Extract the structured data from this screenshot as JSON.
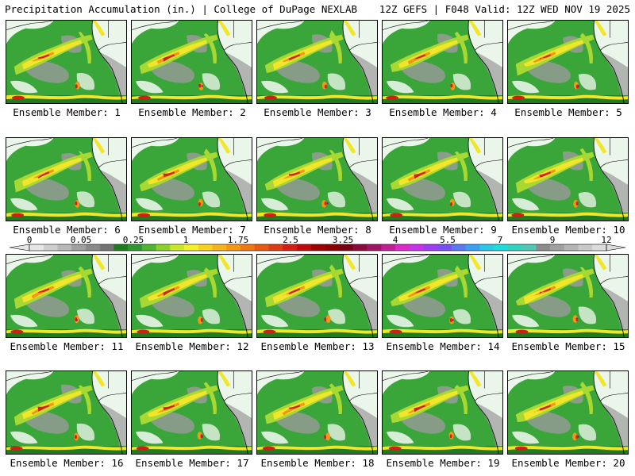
{
  "header": {
    "left_title": "Precipitation Accumulation (in.) | College of DuPage NEXLAB",
    "right_title": "12Z GEFS | F048 Valid: 12Z WED NOV 19 2025"
  },
  "panels": [
    {
      "label": "Ensemble Member: 1"
    },
    {
      "label": "Ensemble Member: 2"
    },
    {
      "label": "Ensemble Member: 3"
    },
    {
      "label": "Ensemble Member: 4"
    },
    {
      "label": "Ensemble Member: 5"
    },
    {
      "label": "Ensemble Member: 6"
    },
    {
      "label": "Ensemble Member: 7"
    },
    {
      "label": "Ensemble Member: 8"
    },
    {
      "label": "Ensemble Member: 9"
    },
    {
      "label": "Ensemble Member: 10"
    },
    {
      "label": "Ensemble Member: 11"
    },
    {
      "label": "Ensemble Member: 12"
    },
    {
      "label": "Ensemble Member: 13"
    },
    {
      "label": "Ensemble Member: 14"
    },
    {
      "label": "Ensemble Member: 15"
    },
    {
      "label": "Ensemble Member: 16"
    },
    {
      "label": "Ensemble Member: 17"
    },
    {
      "label": "Ensemble Member: 18"
    },
    {
      "label": "Ensemble Member: 19"
    },
    {
      "label": "Ensemble Member: 20"
    }
  ],
  "colorbar": {
    "tick_labels": [
      "0",
      "0.05",
      "0.25",
      "1",
      "1.75",
      "2.5",
      "3.25",
      "4",
      "5.5",
      "7",
      "9",
      "12"
    ],
    "colors": [
      "#e6e6e6",
      "#cfcfcf",
      "#b8b8b8",
      "#a0a0a0",
      "#8a8a8a",
      "#747474",
      "#1e7b1e",
      "#2e962e",
      "#4fb52f",
      "#8bd12a",
      "#c8e62a",
      "#f2f22a",
      "#f5d21e",
      "#f5b41e",
      "#f59614",
      "#f07814",
      "#e65a14",
      "#dc3c14",
      "#d21e14",
      "#be0a0a",
      "#a00000",
      "#8c0000",
      "#780014",
      "#8c0a3c",
      "#a01464",
      "#be1e96",
      "#dc28c8",
      "#c832e6",
      "#a03cf0",
      "#7850f0",
      "#5a78f0",
      "#3ca0f0",
      "#28c8e6",
      "#1edcdc",
      "#32d2be",
      "#50c8b4",
      "#8c8c8c",
      "#a0a0a0",
      "#b4b4b4",
      "#c8c8c8",
      "#dcdcdc"
    ]
  },
  "map_colors": {
    "ocean_dry": "#d2d2d2",
    "land_dry": "#ffffff",
    "light": "#9a9a9a",
    "green_dark": "#1e7b1e",
    "green": "#3aa63a",
    "yellow_green": "#a8d832",
    "yellow": "#f2e62a",
    "orange": "#f59614",
    "red": "#d21e14",
    "magenta": "#a01464",
    "coast": "#000000"
  }
}
